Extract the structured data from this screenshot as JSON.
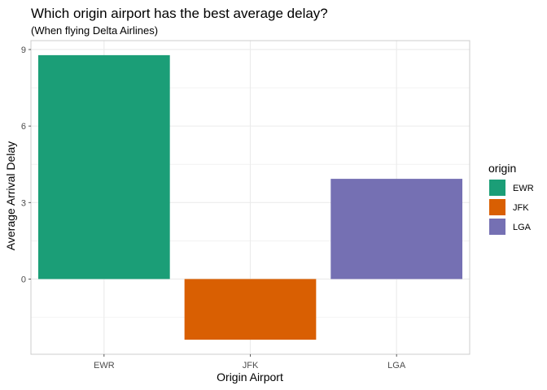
{
  "chart_data": {
    "type": "bar",
    "title": "Which origin airport has the best average delay?",
    "subtitle": "(When flying Delta Airlines)",
    "xlabel": "Origin Airport",
    "ylabel": "Average Arrival Delay",
    "categories": [
      "EWR",
      "JFK",
      "LGA"
    ],
    "values": [
      8.78,
      -2.38,
      3.93
    ],
    "colors": [
      "#1b9e77",
      "#d95f02",
      "#7570b3"
    ],
    "ylim": [
      -2.95,
      9.35
    ],
    "yticks": [
      0,
      3,
      6,
      9
    ],
    "grid": true,
    "legend": {
      "title": "origin",
      "position": "right",
      "entries": [
        "EWR",
        "JFK",
        "LGA"
      ]
    }
  }
}
